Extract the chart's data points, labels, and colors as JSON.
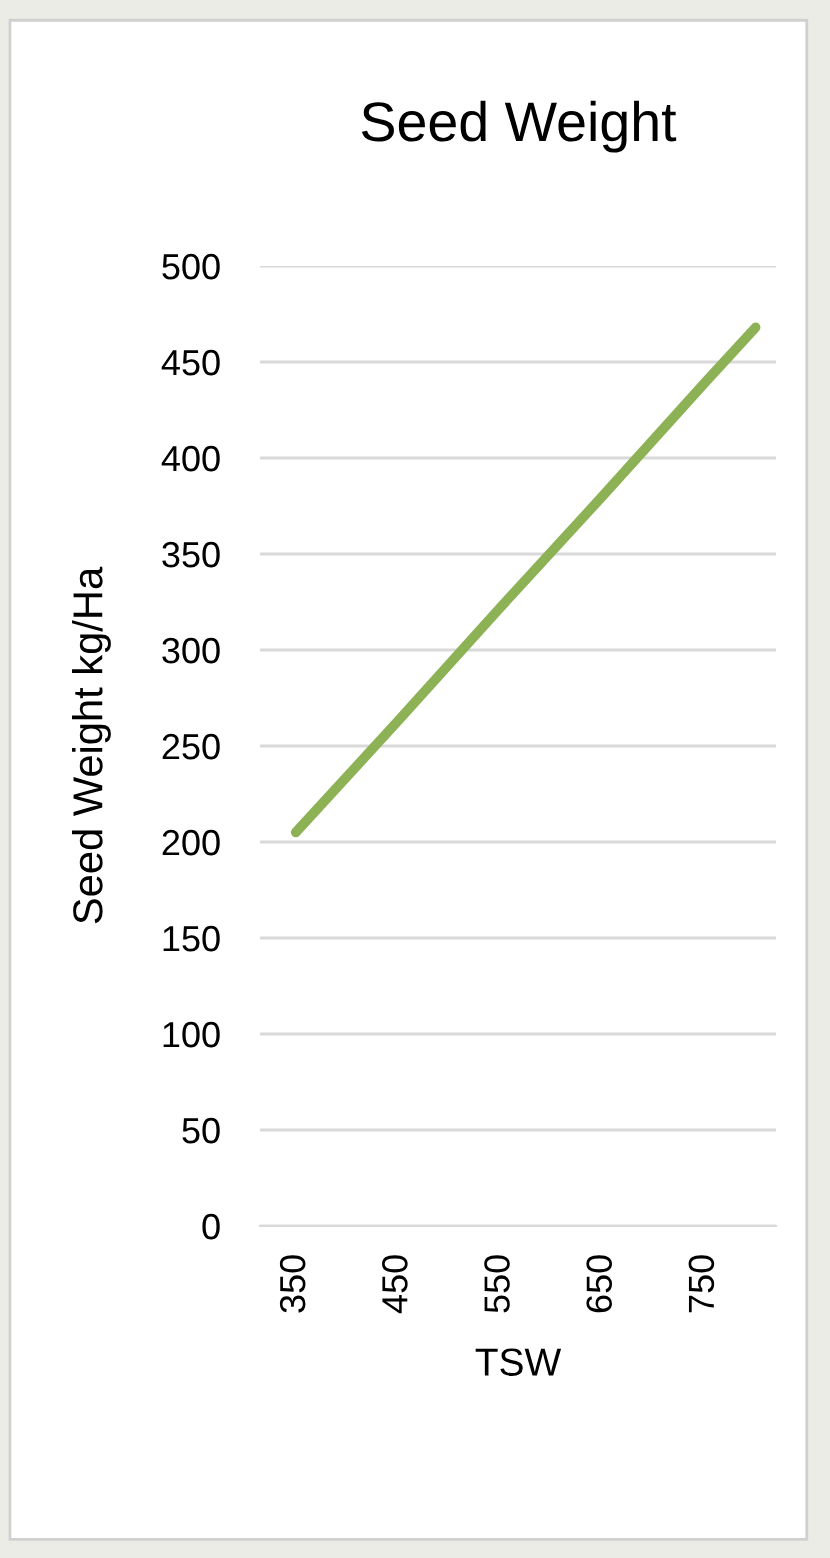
{
  "chart_data": {
    "type": "line",
    "title": "Seed Weight",
    "xlabel": "TSW",
    "ylabel": "Seed Weight kg/Ha",
    "x": [
      350,
      450,
      550,
      650,
      750,
      800
    ],
    "series": [
      {
        "color": "#8db255",
        "values": [
          205,
          263,
          322,
          380,
          439,
          468
        ]
      }
    ],
    "xlim": [
      315,
      820
    ],
    "xticks": [
      350,
      450,
      550,
      650,
      750
    ],
    "ylim": [
      0,
      500
    ],
    "yticks": [
      0,
      50,
      100,
      150,
      200,
      250,
      300,
      350,
      400,
      450,
      500
    ],
    "grid": "y",
    "legend": false,
    "marker": "none",
    "line_style": "solid"
  }
}
